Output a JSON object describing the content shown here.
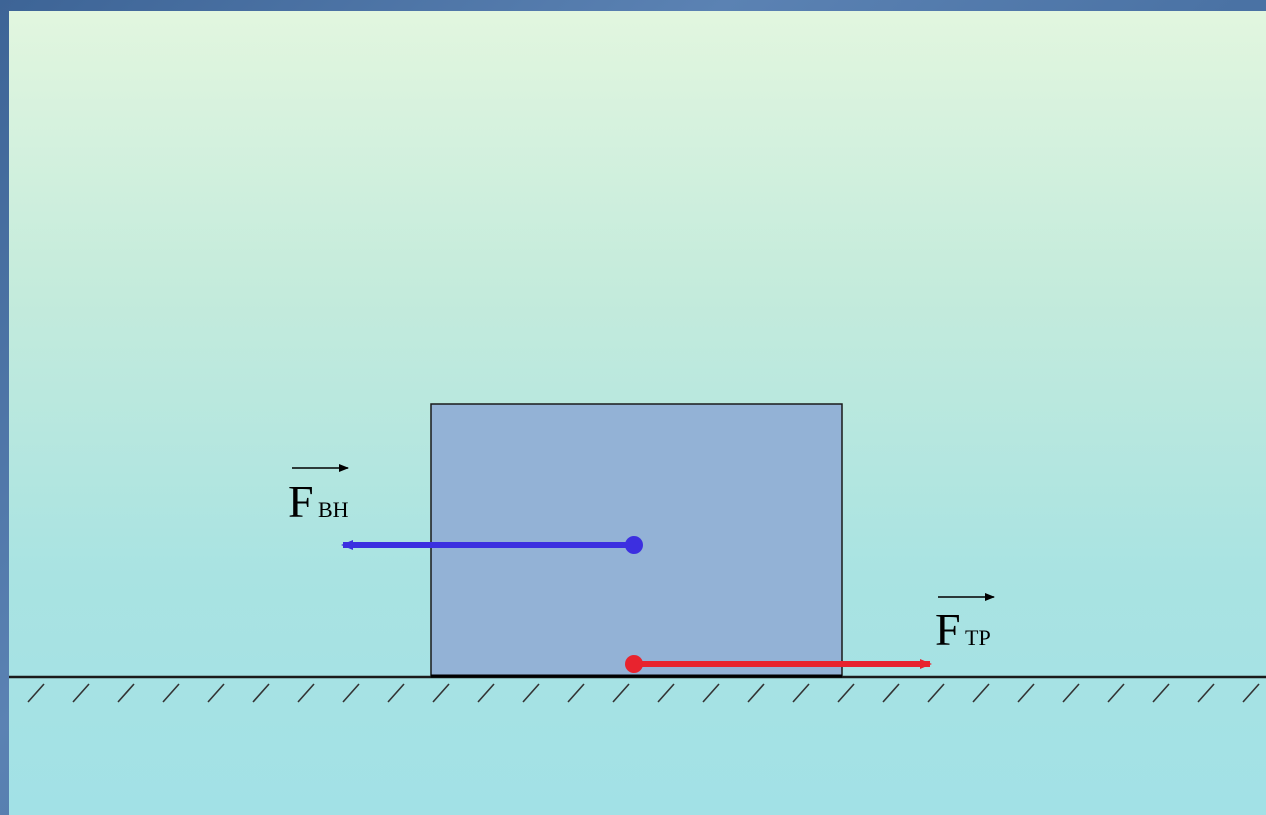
{
  "diagram": {
    "forces": [
      {
        "id": "external-force",
        "label_main": "F",
        "label_sub": "ВН",
        "color": "#3c2fe0"
      },
      {
        "id": "friction-force",
        "label_main": "F",
        "label_sub": "ТР",
        "color": "#e8232e"
      }
    ],
    "block_color": "#93b2d6",
    "ground_color": "#1a1a1a"
  }
}
